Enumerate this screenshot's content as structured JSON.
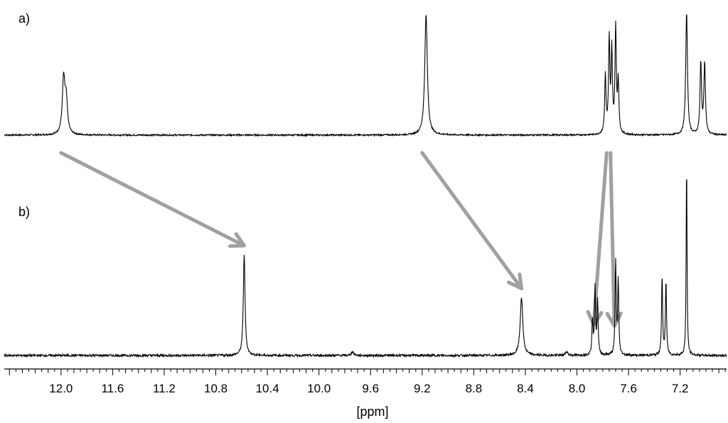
{
  "chart_data": {
    "type": "line",
    "title": "",
    "xlabel": "[ppm]",
    "ylabel": "",
    "x_reversed": true,
    "xlim": [
      12.44,
      6.84
    ],
    "x_ticks": [
      "12.0",
      "11.6",
      "11.2",
      "10.8",
      "10.4",
      "10.0",
      "9.6",
      "9.2",
      "8.8",
      "8.4",
      "8.0",
      "7.6",
      "7.2"
    ],
    "x_tick_values": [
      12.0,
      11.6,
      11.2,
      10.8,
      10.4,
      10.0,
      9.6,
      9.2,
      8.8,
      8.4,
      8.0,
      7.6,
      7.2
    ],
    "grid": false,
    "line_color": "#000000",
    "arrow_color": "#a0a0a0",
    "series": [
      {
        "label": "a)",
        "peaks": [
          {
            "ppm": 11.98,
            "height": 0.42,
            "width": 0.012
          },
          {
            "ppm": 11.96,
            "height": 0.25,
            "width": 0.012
          },
          {
            "ppm": 9.17,
            "height": 0.93,
            "width": 0.012
          },
          {
            "ppm": 7.78,
            "height": 0.45,
            "width": 0.006
          },
          {
            "ppm": 7.75,
            "height": 0.72,
            "width": 0.006
          },
          {
            "ppm": 7.73,
            "height": 0.63,
            "width": 0.006
          },
          {
            "ppm": 7.7,
            "height": 0.82,
            "width": 0.006
          },
          {
            "ppm": 7.68,
            "height": 0.4,
            "width": 0.006
          },
          {
            "ppm": 7.15,
            "height": 0.95,
            "width": 0.008
          },
          {
            "ppm": 7.04,
            "height": 0.55,
            "width": 0.007
          },
          {
            "ppm": 7.01,
            "height": 0.55,
            "width": 0.007
          }
        ]
      },
      {
        "label": "b)",
        "peaks": [
          {
            "ppm": 10.58,
            "height": 0.52,
            "width": 0.008
          },
          {
            "ppm": 9.74,
            "height": 0.02,
            "width": 0.01
          },
          {
            "ppm": 8.43,
            "height": 0.3,
            "width": 0.012
          },
          {
            "ppm": 8.08,
            "height": 0.02,
            "width": 0.01
          },
          {
            "ppm": 7.88,
            "height": 0.18,
            "width": 0.005
          },
          {
            "ppm": 7.86,
            "height": 0.35,
            "width": 0.005
          },
          {
            "ppm": 7.84,
            "height": 0.28,
            "width": 0.005
          },
          {
            "ppm": 7.7,
            "height": 0.48,
            "width": 0.005
          },
          {
            "ppm": 7.68,
            "height": 0.38,
            "width": 0.005
          },
          {
            "ppm": 7.34,
            "height": 0.4,
            "width": 0.005
          },
          {
            "ppm": 7.31,
            "height": 0.38,
            "width": 0.005
          },
          {
            "ppm": 7.15,
            "height": 1.0,
            "width": 0.004
          }
        ]
      }
    ],
    "arrows": [
      {
        "from_ppm": 12.0,
        "from_panel": "a)",
        "to_ppm": 10.58,
        "to_panel": "b)"
      },
      {
        "from_ppm": 9.2,
        "from_panel": "a)",
        "to_ppm": 8.43,
        "to_panel": "b)"
      },
      {
        "from_ppm": 7.77,
        "from_panel": "a)",
        "to_ppm": 7.87,
        "to_panel": "b)"
      },
      {
        "from_ppm": 7.74,
        "from_panel": "a)",
        "to_ppm": 7.71,
        "to_panel": "b)"
      }
    ]
  }
}
